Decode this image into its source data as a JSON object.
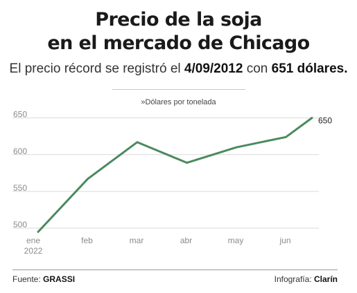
{
  "title": {
    "line1": "Precio de la soja",
    "line2": "en el mercado de Chicago"
  },
  "subtitle": {
    "prefix": "El precio récord se registró el ",
    "date": "4/09/2012",
    "middle": " con ",
    "amount": "651 dólares."
  },
  "unit_label": "»Dólares por tonelada",
  "footer": {
    "source_label": "Fuente: ",
    "source": "GRASSI",
    "credit_label": "Infografía: ",
    "credit": "Clarín"
  },
  "colors": {
    "line": "#4a8a5e",
    "grid": "#d9d9d9",
    "axis_text": "#8a8a8a"
  },
  "chart_data": {
    "type": "line",
    "x": [
      "ene",
      "feb",
      "mar",
      "abr",
      "may",
      "jun",
      ""
    ],
    "x_tick_labels": [
      "ene",
      "feb",
      "mar",
      "abr",
      "may",
      "jun"
    ],
    "x_year_label": "2022",
    "series": [
      {
        "values": [
          495,
          567,
          617,
          589,
          610,
          624,
          650
        ]
      }
    ],
    "end_label": "650",
    "ylim": [
      495,
      652
    ],
    "y_ticks": [
      500,
      550,
      600,
      650
    ],
    "grid": "horizontal",
    "ylabel": "»Dólares por tonelada"
  }
}
